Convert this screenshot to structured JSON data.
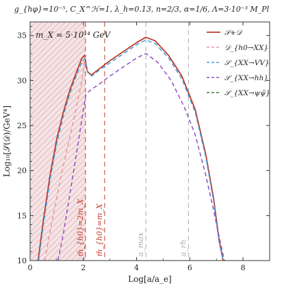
{
  "chart_data": {
    "type": "line",
    "title": "g_{hφ}=10⁻⁵, C_X^ℋ=1, λ_h=0.13, n=2/3, α=1/6, Λ=3·10⁻³ M_Pl",
    "xlabel": "Log[a/a_e]",
    "ylabel": "Log₁₀[𝒮(𝒟)/GeV⁴]",
    "xlim": [
      0,
      9
    ],
    "ylim": [
      10,
      36.5
    ],
    "xticks": [
      0,
      2,
      4,
      6,
      8
    ],
    "yticks": [
      10,
      15,
      20,
      25,
      30,
      35
    ],
    "grid": false,
    "legend_position": "top-right",
    "annotation": "m_X = 5·10¹⁴ GeV",
    "shaded_region": {
      "x": [
        0,
        2.08
      ],
      "color": "#b22e3a"
    },
    "vlines": [
      {
        "x": 2.08,
        "label": "m̄_{h0}=2m_X",
        "color": "#c0392b"
      },
      {
        "x": 2.8,
        "label": "m̄_{h0}=m_X",
        "color": "#c0392b"
      },
      {
        "x": 4.35,
        "label": "a_max",
        "color": "#aaaaaa"
      },
      {
        "x": 5.95,
        "label": "a_rh",
        "color": "#aaaaaa"
      }
    ],
    "series": [
      {
        "name": "𝒮+𝒟",
        "color": "#c0392b",
        "dash": "solid",
        "x": [
          0.3,
          0.5,
          0.75,
          1.0,
          1.25,
          1.5,
          1.75,
          1.95,
          2.05,
          2.15,
          2.3,
          2.6,
          3.0,
          3.5,
          4.0,
          4.35,
          4.7,
          5.2,
          5.7,
          6.2,
          6.6,
          6.9,
          7.1,
          7.25
        ],
        "y": [
          10,
          14.5,
          19.5,
          23.5,
          26.5,
          29.0,
          31.0,
          32.5,
          32.8,
          31.0,
          30.6,
          31.3,
          32.2,
          33.2,
          34.2,
          34.8,
          34.4,
          32.8,
          30.5,
          26.8,
          21.8,
          16.8,
          12.3,
          10
        ]
      },
      {
        "name": "𝒟_{h0→XX}",
        "color": "#e8969e",
        "dash": "dashed",
        "x": [
          0.55,
          0.8,
          1.1,
          1.4,
          1.7,
          1.95,
          2.05,
          2.1
        ],
        "y": [
          10,
          14.0,
          18.5,
          22.5,
          26.5,
          30.0,
          32.2,
          32.8
        ]
      },
      {
        "name": "𝒮_{XX→VV}",
        "color": "#3aa0dc",
        "dash": "dashed",
        "x": [
          0.32,
          0.52,
          0.77,
          1.02,
          1.27,
          1.52,
          1.77,
          1.97,
          2.06,
          2.16,
          2.32,
          2.62,
          3.02,
          3.52,
          4.02,
          4.35,
          4.7,
          5.2,
          5.7,
          6.2,
          6.6,
          6.9,
          7.1,
          7.25
        ],
        "y": [
          10,
          14.4,
          19.3,
          23.3,
          26.3,
          28.8,
          30.8,
          32.2,
          32.4,
          30.9,
          30.5,
          31.2,
          32.0,
          33.0,
          34.0,
          34.5,
          34.1,
          32.5,
          30.2,
          26.5,
          21.5,
          16.5,
          12.1,
          10
        ]
      },
      {
        "name": "𝒮_{XX→hh}",
        "color": "#8e4fc2",
        "dash": "dashed",
        "x": [
          1.05,
          1.25,
          1.5,
          1.75,
          1.95,
          2.1,
          2.3,
          2.6,
          3.0,
          3.5,
          4.0,
          4.35,
          4.8,
          5.3,
          5.8,
          6.2,
          6.6,
          6.9,
          7.15,
          7.3
        ],
        "y": [
          10,
          13.0,
          17.5,
          22.0,
          25.8,
          28.5,
          29.0,
          29.6,
          30.5,
          31.5,
          32.5,
          33.0,
          32.0,
          30.0,
          27.0,
          24.0,
          19.5,
          15.5,
          12.0,
          10
        ]
      },
      {
        "name": "𝒮_{XX→ψψ̄}",
        "color": "#2e7d32",
        "dash": "dashed",
        "x": [],
        "y": []
      }
    ]
  }
}
